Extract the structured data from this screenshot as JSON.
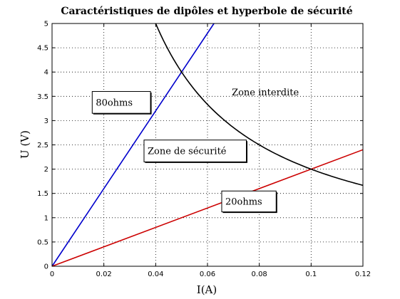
{
  "chart_data": {
    "type": "line",
    "title": "Caractéristiques de dipôles et hyperbole de sécurité",
    "xlabel": "I(A)",
    "ylabel": "U (V)",
    "xlim": [
      0,
      0.12
    ],
    "ylim": [
      0,
      5
    ],
    "grid": true,
    "x_ticks": [
      "0",
      "0.02",
      "0.04",
      "0.06",
      "0.08",
      "0.1",
      "0.12"
    ],
    "y_ticks": [
      "0",
      "0.5",
      "1",
      "1.5",
      "2",
      "2.5",
      "3",
      "3.5",
      "4",
      "4.5",
      "5"
    ],
    "series": [
      {
        "name": "80ohms",
        "color": "#0000cc",
        "function": "U = 80 * I",
        "x": [
          0,
          0.0625
        ],
        "y": [
          0,
          5
        ]
      },
      {
        "name": "20ohms",
        "color": "#cc0000",
        "function": "U = 20 * I",
        "x": [
          0,
          0.12
        ],
        "y": [
          0,
          2.4
        ]
      },
      {
        "name": "",
        "color": "#000000",
        "function": "U = 0.2 / I",
        "x": [
          0.04,
          0.05,
          0.06,
          0.07,
          0.08,
          0.09,
          0.1,
          0.11,
          0.12
        ],
        "y": [
          5,
          4,
          3.33,
          2.86,
          2.5,
          2.22,
          2,
          1.82,
          1.67
        ]
      }
    ],
    "annotations": [
      {
        "key": "zone_interdite",
        "text": "Zone interdite",
        "x": 0.068,
        "y": 3.82,
        "x2": 0.102,
        "y2": 3.35
      },
      {
        "key": "label_80",
        "text": "80ohms",
        "x": 0.0155,
        "y": 3.15,
        "x2": 0.038,
        "y2": 3.6
      },
      {
        "key": "zone_securite",
        "text": "Zone de sécurité",
        "x": 0.0355,
        "y": 2.15,
        "x2": 0.075,
        "y2": 2.6
      },
      {
        "key": "label_20",
        "text": "20ohms",
        "x": 0.0655,
        "y": 1.12,
        "x2": 0.0865,
        "y2": 1.55
      }
    ]
  }
}
